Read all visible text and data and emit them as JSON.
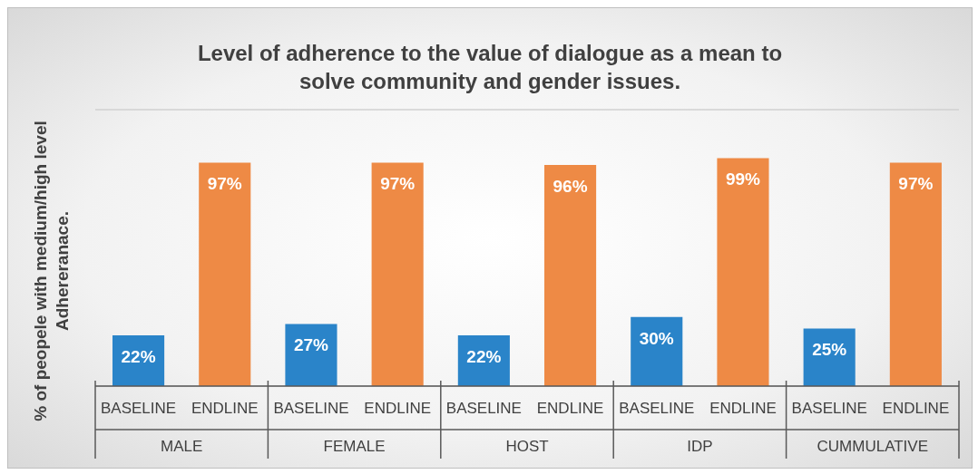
{
  "chart_data": {
    "type": "bar",
    "title": "Level of adherence to the value of dialogue as a mean to solve community and gender issues.",
    "ylabel": "% of peopele with medium/high level Adhereranace.",
    "categories": [
      "MALE",
      "FEMALE",
      "HOST",
      "IDP",
      "CUMMULATIVE"
    ],
    "series": [
      {
        "name": "BASELINE",
        "color": "#2a84c9",
        "values": [
          22,
          27,
          22,
          30,
          25
        ],
        "value_labels": [
          "22%",
          "27%",
          "22%",
          "30%",
          "25%"
        ]
      },
      {
        "name": "ENDLINE",
        "color": "#ee8a45",
        "values": [
          97,
          97,
          96,
          99,
          97
        ],
        "value_labels": [
          "97%",
          "97%",
          "96%",
          "99%",
          "97%"
        ]
      }
    ],
    "ylim": [
      0,
      120
    ],
    "grid": "y",
    "tick_labels": "x",
    "legend": false
  }
}
